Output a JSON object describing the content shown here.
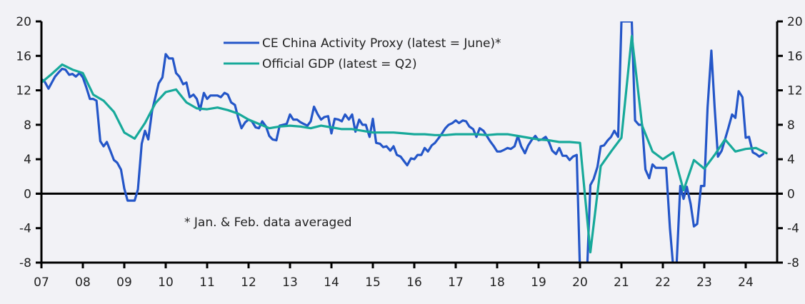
{
  "chart_data": {
    "type": "line",
    "title": "",
    "xlabel": "",
    "ylabel": "",
    "x_tick_labels": [
      "07",
      "08",
      "09",
      "10",
      "11",
      "12",
      "13",
      "14",
      "15",
      "16",
      "17",
      "18",
      "19",
      "20",
      "21",
      "22",
      "23",
      "24"
    ],
    "x_range": [
      2007,
      2024.75
    ],
    "ylim": [
      -8,
      20
    ],
    "y_ticks": [
      -8,
      -4,
      0,
      4,
      8,
      12,
      16,
      20
    ],
    "y_tick_labels_left": [
      "-8",
      "-4",
      "0",
      "4",
      "8",
      "12",
      "16",
      "20"
    ],
    "y_tick_labels_right": [
      "-8",
      "-4",
      "0",
      "4",
      "8",
      "12",
      "16",
      "20"
    ],
    "grid": false,
    "zero_line": true,
    "legend_position": "top-center",
    "annotation": "* Jan. & Feb. data averaged",
    "series": [
      {
        "name": "CE China Activity Proxy (latest =  June)*",
        "color": "#2456c8",
        "x": [
          2007.0,
          2007.08,
          2007.17,
          2007.25,
          2007.33,
          2007.42,
          2007.5,
          2007.58,
          2007.67,
          2007.75,
          2007.83,
          2007.92,
          2008.0,
          2008.08,
          2008.17,
          2008.25,
          2008.33,
          2008.42,
          2008.5,
          2008.58,
          2008.67,
          2008.75,
          2008.83,
          2008.92,
          2009.0,
          2009.08,
          2009.17,
          2009.25,
          2009.33,
          2009.42,
          2009.5,
          2009.58,
          2009.67,
          2009.75,
          2009.83,
          2009.92,
          2010.0,
          2010.08,
          2010.17,
          2010.25,
          2010.33,
          2010.42,
          2010.5,
          2010.58,
          2010.67,
          2010.75,
          2010.83,
          2010.92,
          2011.0,
          2011.08,
          2011.17,
          2011.25,
          2011.33,
          2011.42,
          2011.5,
          2011.58,
          2011.67,
          2011.75,
          2011.83,
          2011.92,
          2012.0,
          2012.08,
          2012.17,
          2012.25,
          2012.33,
          2012.42,
          2012.5,
          2012.58,
          2012.67,
          2012.75,
          2012.83,
          2012.92,
          2013.0,
          2013.08,
          2013.17,
          2013.25,
          2013.33,
          2013.42,
          2013.5,
          2013.58,
          2013.67,
          2013.75,
          2013.83,
          2013.92,
          2014.0,
          2014.08,
          2014.17,
          2014.25,
          2014.33,
          2014.42,
          2014.5,
          2014.58,
          2014.67,
          2014.75,
          2014.83,
          2014.92,
          2015.0,
          2015.08,
          2015.17,
          2015.25,
          2015.33,
          2015.42,
          2015.5,
          2015.58,
          2015.67,
          2015.75,
          2015.83,
          2015.92,
          2016.0,
          2016.08,
          2016.17,
          2016.25,
          2016.33,
          2016.42,
          2016.5,
          2016.58,
          2016.67,
          2016.75,
          2016.83,
          2016.92,
          2017.0,
          2017.08,
          2017.17,
          2017.25,
          2017.33,
          2017.42,
          2017.5,
          2017.58,
          2017.67,
          2017.75,
          2017.83,
          2017.92,
          2018.0,
          2018.08,
          2018.17,
          2018.25,
          2018.33,
          2018.42,
          2018.5,
          2018.58,
          2018.67,
          2018.75,
          2018.83,
          2018.92,
          2019.0,
          2019.08,
          2019.17,
          2019.25,
          2019.33,
          2019.42,
          2019.5,
          2019.58,
          2019.67,
          2019.75,
          2019.83,
          2019.92,
          2020.0,
          2020.08,
          2020.17,
          2020.25,
          2020.33,
          2020.42,
          2020.5,
          2020.58,
          2020.67,
          2020.75,
          2020.83,
          2020.92,
          2021.0,
          2021.08,
          2021.17,
          2021.25,
          2021.33,
          2021.42,
          2021.5,
          2021.58,
          2021.67,
          2021.75,
          2021.83,
          2021.92,
          2022.0,
          2022.08,
          2022.17,
          2022.25,
          2022.33,
          2022.42,
          2022.5,
          2022.58,
          2022.67,
          2022.75,
          2022.83,
          2022.92,
          2023.0,
          2023.08,
          2023.17,
          2023.25,
          2023.33,
          2023.42,
          2023.5,
          2023.58,
          2023.67,
          2023.75,
          2023.83,
          2023.92,
          2024.0,
          2024.08,
          2024.17,
          2024.25,
          2024.33,
          2024.42
        ],
        "values": [
          13.3,
          13.0,
          12.2,
          12.9,
          13.6,
          14.1,
          14.5,
          14.4,
          13.8,
          13.9,
          13.6,
          14.0,
          13.5,
          12.4,
          11.0,
          11.0,
          10.8,
          6.1,
          5.5,
          6.0,
          4.9,
          3.9,
          3.6,
          2.8,
          0.6,
          -0.8,
          -0.8,
          -0.8,
          0.5,
          5.8,
          7.3,
          6.3,
          9.6,
          11.2,
          12.8,
          13.5,
          16.2,
          15.7,
          15.7,
          14.0,
          13.6,
          12.7,
          12.9,
          11.2,
          11.5,
          11.0,
          9.7,
          11.7,
          11.0,
          11.4,
          11.4,
          11.4,
          11.2,
          11.7,
          11.5,
          10.6,
          10.3,
          8.8,
          7.6,
          8.3,
          8.6,
          8.4,
          7.7,
          7.6,
          8.4,
          7.8,
          6.7,
          6.3,
          6.2,
          7.9,
          8.0,
          8.1,
          9.2,
          8.6,
          8.6,
          8.3,
          8.1,
          7.9,
          8.4,
          10.1,
          9.2,
          8.6,
          8.9,
          9.0,
          7.0,
          8.7,
          8.6,
          8.4,
          9.2,
          8.6,
          9.2,
          7.2,
          8.6,
          8.0,
          8.0,
          6.6,
          8.7,
          5.9,
          5.8,
          5.4,
          5.5,
          5.0,
          5.5,
          4.5,
          4.3,
          3.8,
          3.3,
          4.1,
          4.0,
          4.5,
          4.5,
          5.3,
          4.9,
          5.6,
          5.9,
          6.4,
          7.0,
          7.6,
          8.0,
          8.2,
          8.5,
          8.2,
          8.5,
          8.4,
          7.8,
          7.5,
          6.6,
          7.6,
          7.3,
          6.7,
          6.1,
          5.5,
          4.9,
          4.9,
          5.1,
          5.3,
          5.2,
          5.5,
          6.7,
          5.5,
          4.7,
          5.6,
          6.2,
          6.7,
          6.2,
          6.3,
          6.6,
          6.0,
          5.0,
          4.6,
          5.3,
          4.4,
          4.4,
          3.9,
          4.3,
          4.5,
          -9.0,
          -9.0,
          -9.0,
          1.0,
          1.7,
          3.1,
          5.5,
          5.6,
          6.2,
          6.6,
          7.3,
          6.6,
          20.0,
          20.0,
          20.0,
          20.0,
          8.5,
          8.0,
          8.0,
          2.8,
          1.8,
          3.4,
          3.0,
          3.0,
          3.0,
          3.0,
          -4.0,
          -8.5,
          -8.5,
          0.9,
          -0.6,
          0.8,
          -1.2,
          -3.8,
          -3.5,
          0.9,
          0.9,
          10.0,
          16.6,
          10.0,
          4.3,
          5.0,
          6.3,
          7.6,
          9.2,
          8.8,
          11.9,
          11.2,
          6.5,
          6.6,
          4.8,
          4.6,
          4.3,
          4.6
        ]
      },
      {
        "name": "Official GDP (latest = Q2)",
        "color": "#17a99a",
        "x": [
          2007.0,
          2007.25,
          2007.5,
          2007.75,
          2008.0,
          2008.25,
          2008.5,
          2008.75,
          2009.0,
          2009.25,
          2009.5,
          2009.75,
          2010.0,
          2010.25,
          2010.5,
          2010.75,
          2011.0,
          2011.25,
          2011.5,
          2011.75,
          2012.0,
          2012.25,
          2012.5,
          2012.75,
          2013.0,
          2013.25,
          2013.5,
          2013.75,
          2014.0,
          2014.25,
          2014.5,
          2014.75,
          2015.0,
          2015.25,
          2015.5,
          2015.75,
          2016.0,
          2016.25,
          2016.5,
          2016.75,
          2017.0,
          2017.25,
          2017.5,
          2017.75,
          2018.0,
          2018.25,
          2018.5,
          2018.75,
          2019.0,
          2019.25,
          2019.5,
          2019.75,
          2020.0,
          2020.25,
          2020.5,
          2020.75,
          2021.0,
          2021.25,
          2021.5,
          2021.75,
          2022.0,
          2022.25,
          2022.5,
          2022.75,
          2023.0,
          2023.25,
          2023.5,
          2023.75,
          2024.0,
          2024.25,
          2024.5
        ],
        "values": [
          12.9,
          13.9,
          15.0,
          14.4,
          14.0,
          11.5,
          10.8,
          9.5,
          7.1,
          6.4,
          8.2,
          10.5,
          11.8,
          12.1,
          10.6,
          9.9,
          9.8,
          10.0,
          9.7,
          9.3,
          8.6,
          8.1,
          7.6,
          7.8,
          7.9,
          7.8,
          7.6,
          7.9,
          7.7,
          7.5,
          7.5,
          7.3,
          7.1,
          7.1,
          7.1,
          7.0,
          6.9,
          6.9,
          6.8,
          6.8,
          6.9,
          6.9,
          6.9,
          6.8,
          6.9,
          6.9,
          6.7,
          6.5,
          6.3,
          6.2,
          6.0,
          6.0,
          5.9,
          -6.8,
          3.2,
          4.9,
          6.5,
          18.3,
          7.9,
          4.9,
          4.0,
          4.8,
          0.4,
          3.9,
          2.9,
          4.5,
          6.3,
          4.9,
          5.2,
          5.3,
          4.7
        ]
      }
    ]
  }
}
